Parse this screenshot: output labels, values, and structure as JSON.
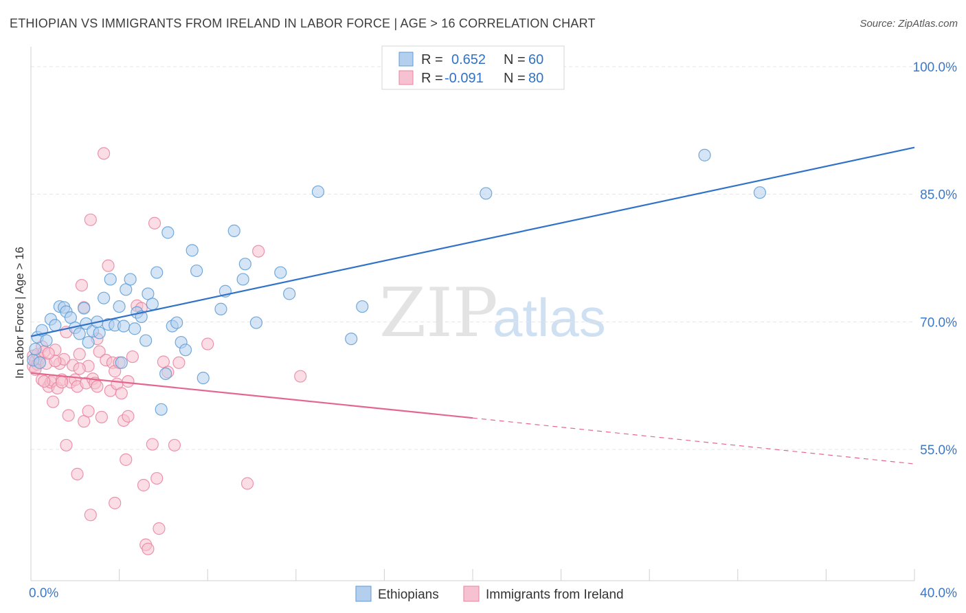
{
  "chart_data": {
    "type": "scatter",
    "title": "ETHIOPIAN VS IMMIGRANTS FROM IRELAND IN LABOR FORCE | AGE > 16 CORRELATION CHART",
    "source": "Source: ZipAtlas.com",
    "ylabel": "In Labor Force | Age > 16",
    "xlim": [
      0,
      40
    ],
    "ylim": [
      40,
      102
    ],
    "x_tick_labels": [
      {
        "value": 0,
        "label": "0.0%"
      },
      {
        "value": 40,
        "label": "40.0%"
      }
    ],
    "y_tick_labels": [
      {
        "value": 100,
        "label": "100.0%"
      },
      {
        "value": 85,
        "label": "85.0%"
      },
      {
        "value": 70,
        "label": "70.0%"
      },
      {
        "value": 55,
        "label": "55.0%"
      }
    ],
    "y_gridlines": [
      100,
      85,
      70,
      55
    ],
    "x_minor_ticks": [
      0,
      4,
      8,
      12,
      16,
      20,
      24,
      28,
      32,
      36,
      40
    ],
    "watermark": {
      "zip": "ZIP",
      "atlas": "atlas"
    },
    "legend": [
      {
        "r_label": "R =",
        "r_value": "0.652",
        "n_label": "N =",
        "n_value": "60"
      },
      {
        "r_label": "R =",
        "r_value": "-0.091",
        "n_label": "N =",
        "n_value": "80"
      }
    ],
    "series": [
      {
        "name": "Ethiopians",
        "color": "#5b9bd5",
        "fill": "#b4cfee",
        "line_color": "#2f72c8",
        "trend": {
          "x0": 0,
          "y0": 68.3,
          "x1": 40,
          "y1": 90.5
        },
        "points": [
          [
            0.1,
            65.5
          ],
          [
            0.2,
            66.8
          ],
          [
            0.3,
            68.2
          ],
          [
            0.4,
            65.2
          ],
          [
            0.5,
            69.0
          ],
          [
            0.7,
            67.8
          ],
          [
            0.9,
            70.3
          ],
          [
            1.1,
            69.6
          ],
          [
            1.3,
            71.8
          ],
          [
            1.5,
            71.7
          ],
          [
            1.6,
            71.2
          ],
          [
            1.8,
            70.5
          ],
          [
            2.0,
            69.3
          ],
          [
            2.2,
            68.6
          ],
          [
            2.4,
            71.6
          ],
          [
            2.5,
            69.8
          ],
          [
            2.6,
            67.6
          ],
          [
            2.8,
            68.9
          ],
          [
            3.0,
            70.0
          ],
          [
            3.1,
            68.7
          ],
          [
            3.3,
            72.8
          ],
          [
            3.5,
            69.7
          ],
          [
            3.6,
            75.0
          ],
          [
            3.8,
            69.6
          ],
          [
            4.0,
            71.8
          ],
          [
            4.2,
            69.5
          ],
          [
            4.3,
            73.8
          ],
          [
            4.5,
            75.0
          ],
          [
            4.7,
            69.2
          ],
          [
            4.8,
            71.1
          ],
          [
            5.0,
            70.6
          ],
          [
            5.2,
            67.8
          ],
          [
            5.3,
            73.3
          ],
          [
            5.5,
            72.1
          ],
          [
            5.7,
            75.8
          ],
          [
            5.9,
            59.7
          ],
          [
            6.1,
            63.9
          ],
          [
            6.2,
            80.5
          ],
          [
            6.4,
            69.5
          ],
          [
            6.6,
            69.9
          ],
          [
            6.8,
            67.6
          ],
          [
            7.0,
            66.7
          ],
          [
            7.3,
            78.4
          ],
          [
            7.5,
            76.0
          ],
          [
            7.8,
            63.4
          ],
          [
            8.6,
            71.5
          ],
          [
            8.8,
            73.6
          ],
          [
            9.2,
            80.7
          ],
          [
            9.6,
            75.0
          ],
          [
            9.7,
            76.8
          ],
          [
            10.2,
            69.9
          ],
          [
            11.3,
            75.8
          ],
          [
            11.7,
            73.3
          ],
          [
            13.0,
            85.3
          ],
          [
            14.5,
            68.0
          ],
          [
            15.0,
            71.8
          ],
          [
            20.6,
            85.1
          ],
          [
            30.5,
            89.6
          ],
          [
            33.0,
            85.2
          ],
          [
            4.1,
            65.2
          ]
        ]
      },
      {
        "name": "Immigrants from Ireland",
        "color": "#e9829f",
        "fill": "#f6c1d0",
        "line_color": "#e4668f",
        "trend": {
          "x0": 0,
          "y0": 64.0,
          "x1": 20.0,
          "y1": 58.7
        },
        "trend_dashed": {
          "x0": 20.0,
          "y0": 58.7,
          "x1": 40,
          "y1": 53.3
        },
        "points": [
          [
            0.1,
            66.0
          ],
          [
            0.1,
            64.8
          ],
          [
            0.2,
            65.4
          ],
          [
            0.3,
            66.2
          ],
          [
            0.3,
            65.0
          ],
          [
            0.4,
            65.7
          ],
          [
            0.5,
            67.1
          ],
          [
            0.5,
            63.2
          ],
          [
            0.6,
            66.5
          ],
          [
            0.7,
            65.1
          ],
          [
            0.8,
            62.4
          ],
          [
            0.9,
            62.9
          ],
          [
            1.0,
            60.6
          ],
          [
            1.0,
            63.1
          ],
          [
            1.1,
            66.7
          ],
          [
            1.2,
            62.2
          ],
          [
            1.3,
            65.1
          ],
          [
            1.4,
            63.2
          ],
          [
            1.5,
            65.6
          ],
          [
            1.6,
            68.8
          ],
          [
            1.6,
            55.5
          ],
          [
            1.7,
            59.0
          ],
          [
            1.8,
            62.9
          ],
          [
            1.9,
            64.9
          ],
          [
            2.0,
            63.2
          ],
          [
            2.1,
            62.4
          ],
          [
            2.1,
            52.1
          ],
          [
            2.2,
            66.2
          ],
          [
            2.3,
            74.3
          ],
          [
            2.4,
            58.3
          ],
          [
            2.4,
            71.7
          ],
          [
            2.5,
            62.8
          ],
          [
            2.6,
            59.5
          ],
          [
            2.6,
            64.8
          ],
          [
            2.7,
            82.0
          ],
          [
            2.7,
            47.3
          ],
          [
            2.8,
            63.3
          ],
          [
            2.9,
            62.8
          ],
          [
            3.0,
            68.0
          ],
          [
            3.0,
            62.4
          ],
          [
            3.1,
            66.5
          ],
          [
            3.2,
            58.8
          ],
          [
            3.3,
            89.8
          ],
          [
            3.4,
            65.5
          ],
          [
            3.5,
            76.6
          ],
          [
            3.6,
            61.9
          ],
          [
            3.7,
            65.2
          ],
          [
            3.8,
            64.2
          ],
          [
            3.8,
            48.7
          ],
          [
            3.9,
            62.7
          ],
          [
            4.0,
            65.2
          ],
          [
            4.1,
            61.6
          ],
          [
            4.2,
            58.4
          ],
          [
            4.3,
            53.8
          ],
          [
            4.4,
            58.9
          ],
          [
            4.4,
            63.0
          ],
          [
            4.6,
            65.9
          ],
          [
            4.8,
            71.9
          ],
          [
            5.0,
            71.6
          ],
          [
            5.1,
            50.8
          ],
          [
            5.2,
            43.8
          ],
          [
            5.3,
            43.3
          ],
          [
            5.5,
            55.6
          ],
          [
            5.6,
            81.6
          ],
          [
            5.7,
            51.6
          ],
          [
            5.8,
            45.7
          ],
          [
            6.0,
            65.3
          ],
          [
            6.2,
            64.1
          ],
          [
            6.5,
            55.5
          ],
          [
            6.7,
            65.2
          ],
          [
            8.0,
            67.4
          ],
          [
            9.8,
            51.0
          ],
          [
            10.3,
            78.3
          ],
          [
            12.2,
            63.6
          ],
          [
            1.1,
            65.4
          ],
          [
            2.2,
            64.5
          ],
          [
            0.6,
            63.0
          ],
          [
            1.4,
            62.9
          ],
          [
            0.8,
            66.3
          ],
          [
            0.2,
            64.4
          ]
        ]
      }
    ]
  }
}
